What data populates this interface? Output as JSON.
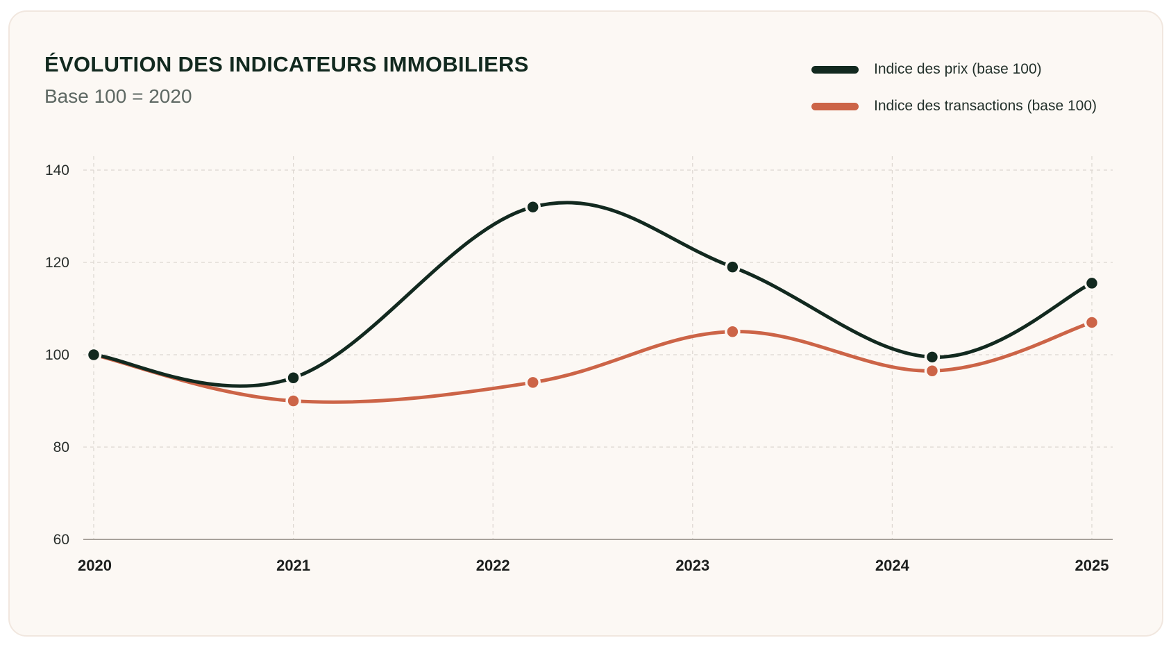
{
  "title": "ÉVOLUTION DES INDICATEURS IMMOBILIERS",
  "subtitle": "Base 100 = 2020",
  "colors": {
    "background": "#fcf8f4",
    "prix": "#12291f",
    "transactions": "#cc6447",
    "grid": "#dcd6d0",
    "axis": "#a8a29b"
  },
  "chart_data": {
    "type": "line",
    "title": "ÉVOLUTION DES INDICATEURS IMMOBILIERS",
    "subtitle": "Base 100 = 2020",
    "xlabel": "",
    "ylabel": "",
    "x_tick_labels": [
      "2020",
      "2021",
      "2022",
      "2023",
      "2024",
      "2025"
    ],
    "x_range": [
      2020,
      2025
    ],
    "ylim": [
      60,
      140
    ],
    "y_ticks": [
      60,
      80,
      100,
      120,
      140
    ],
    "grid": true,
    "legend_position": "top-right",
    "series": [
      {
        "name": "Indice des prix (base 100)",
        "color": "#12291f",
        "x": [
          2020,
          2021,
          2022.2,
          2023.2,
          2024.2,
          2025
        ],
        "values": [
          100,
          95,
          132,
          119,
          99.5,
          115.5
        ]
      },
      {
        "name": "Indice des transactions (base 100)",
        "color": "#cc6447",
        "x": [
          2020,
          2021,
          2022.2,
          2023.2,
          2024.2,
          2025
        ],
        "values": [
          100,
          90,
          94,
          105,
          96.5,
          107
        ]
      }
    ]
  }
}
